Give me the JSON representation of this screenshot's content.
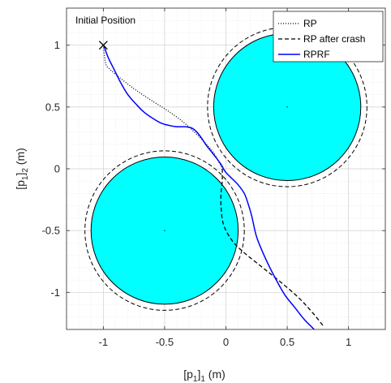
{
  "chart_data": {
    "type": "line",
    "title": "",
    "xlabel_main": "[p",
    "xlabel_sub1": "1",
    "xlabel_mid": "]",
    "xlabel_sub2": "1",
    "xlabel_unit": " (m)",
    "ylabel_main": "[p",
    "ylabel_sub1": "1",
    "ylabel_mid": "]",
    "ylabel_sub2": "2",
    "ylabel_unit": " (m)",
    "xlim": [
      -1.3,
      1.3
    ],
    "ylim": [
      -1.3,
      1.3
    ],
    "xticks": [
      -1,
      -0.5,
      0,
      0.5,
      1
    ],
    "xtick_labels": [
      "-1",
      "-0.5",
      "0",
      "0.5",
      "1"
    ],
    "yticks": [
      1,
      0.5,
      0,
      -0.5,
      -1
    ],
    "ytick_labels": [
      "1",
      "0.5",
      "0",
      "-0.5",
      "-1"
    ],
    "grid": true,
    "minor_grid": true,
    "legend_position": "top-right",
    "annotation": "Initial Position",
    "start_point": [
      -1,
      1
    ],
    "obstacles": [
      {
        "center": [
          0.5,
          0.5
        ],
        "radius": 0.6,
        "safety_radius": 0.65,
        "fill": "#00ffff"
      },
      {
        "center": [
          -0.5,
          -0.5
        ],
        "radius": 0.6,
        "safety_radius": 0.65,
        "fill": "#00ffff"
      }
    ],
    "series": [
      {
        "name": "RP",
        "style": "dotted",
        "color": "#000000",
        "x": [
          -1.0,
          -0.98,
          -0.94,
          -0.87,
          -0.78,
          -0.68,
          -0.57,
          -0.46,
          -0.35,
          -0.26,
          -0.17,
          -0.1,
          -0.05,
          -0.03
        ],
        "y": [
          1.0,
          0.85,
          0.8,
          0.74,
          0.67,
          0.6,
          0.53,
          0.46,
          0.38,
          0.3,
          0.21,
          0.13,
          0.04,
          0.0
        ]
      },
      {
        "name": "RP after crash",
        "style": "dashed",
        "color": "#000000",
        "x": [
          -0.03,
          -0.03,
          -0.04,
          -0.04,
          -0.02,
          0.05,
          0.15,
          0.3,
          0.45,
          0.6,
          0.72,
          0.8
        ],
        "y": [
          0.0,
          -0.1,
          -0.2,
          -0.3,
          -0.45,
          -0.58,
          -0.68,
          -0.8,
          -0.92,
          -1.05,
          -1.18,
          -1.28
        ]
      },
      {
        "name": "RPRF",
        "style": "solid",
        "color": "#0000ff",
        "x": [
          -1.0,
          -0.99,
          -0.96,
          -0.91,
          -0.86,
          -0.8,
          -0.73,
          -0.67,
          -0.6,
          -0.53,
          -0.46,
          -0.4,
          -0.33,
          -0.28,
          -0.24,
          -0.2,
          -0.16,
          -0.12,
          -0.08,
          -0.05,
          -0.03,
          -0.02,
          0.0,
          0.04,
          0.1,
          0.15,
          0.18,
          0.21,
          0.25,
          0.32,
          0.4,
          0.48,
          0.56,
          0.64,
          0.72
        ],
        "y": [
          1.0,
          0.98,
          0.9,
          0.8,
          0.7,
          0.6,
          0.52,
          0.46,
          0.41,
          0.37,
          0.35,
          0.34,
          0.34,
          0.33,
          0.3,
          0.25,
          0.19,
          0.14,
          0.09,
          0.05,
          0.02,
          0.0,
          -0.03,
          -0.07,
          -0.13,
          -0.2,
          -0.28,
          -0.38,
          -0.55,
          -0.72,
          -0.88,
          -1.02,
          -1.12,
          -1.22,
          -1.3
        ]
      }
    ]
  }
}
